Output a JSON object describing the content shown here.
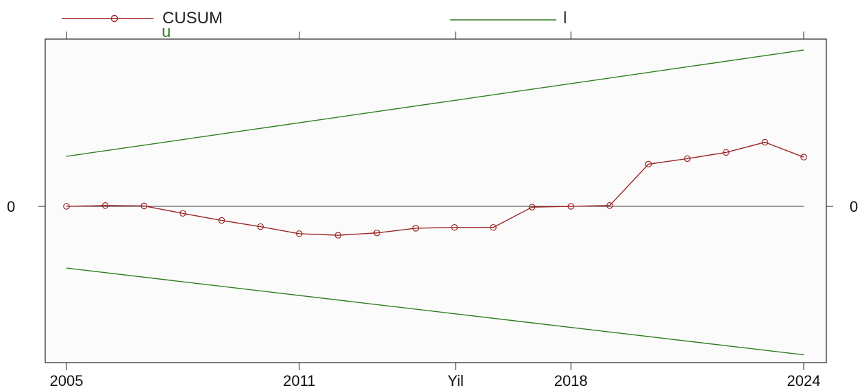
{
  "chart_data": {
    "type": "line",
    "title": "",
    "xlabel": "Yil",
    "ylabel": "",
    "xlim": [
      2005,
      2024
    ],
    "ylim": [
      -10,
      10
    ],
    "grid": false,
    "legend_position": "top",
    "x_ticks": [
      "2005",
      "2011",
      "2018",
      "2024"
    ],
    "y_tick_label": "0",
    "legend": [
      {
        "label": "CUSUM",
        "color": "#9b2323",
        "marker": "circle"
      },
      {
        "label": "l",
        "color": "#2e7d1e",
        "marker": "none"
      },
      {
        "label": "u",
        "color": "#2e7d1e",
        "marker": "none"
      }
    ],
    "series": [
      {
        "name": "CUSUM",
        "color": "#9b2323",
        "x": [
          2005,
          2006,
          2007,
          2008,
          2009,
          2010,
          2011,
          2012,
          2013,
          2014,
          2015,
          2016,
          2017,
          2018,
          2019,
          2020,
          2021,
          2022,
          2023,
          2024
        ],
        "y": [
          0,
          0.1,
          0.05,
          -0.9,
          -1.8,
          -2.6,
          -3.5,
          -3.7,
          -3.4,
          -2.8,
          -2.7,
          -2.7,
          -0.1,
          0,
          0.1,
          5.4,
          6.1,
          6.9,
          8.2,
          6.3
        ]
      },
      {
        "name": "u",
        "color": "#2e7d1e",
        "x": [
          2005,
          2024
        ],
        "y": [
          6.4,
          20.0
        ]
      },
      {
        "name": "l",
        "color": "#2e7d1e",
        "x": [
          2005,
          2024
        ],
        "y": [
          -7.9,
          -19.0
        ]
      }
    ]
  }
}
